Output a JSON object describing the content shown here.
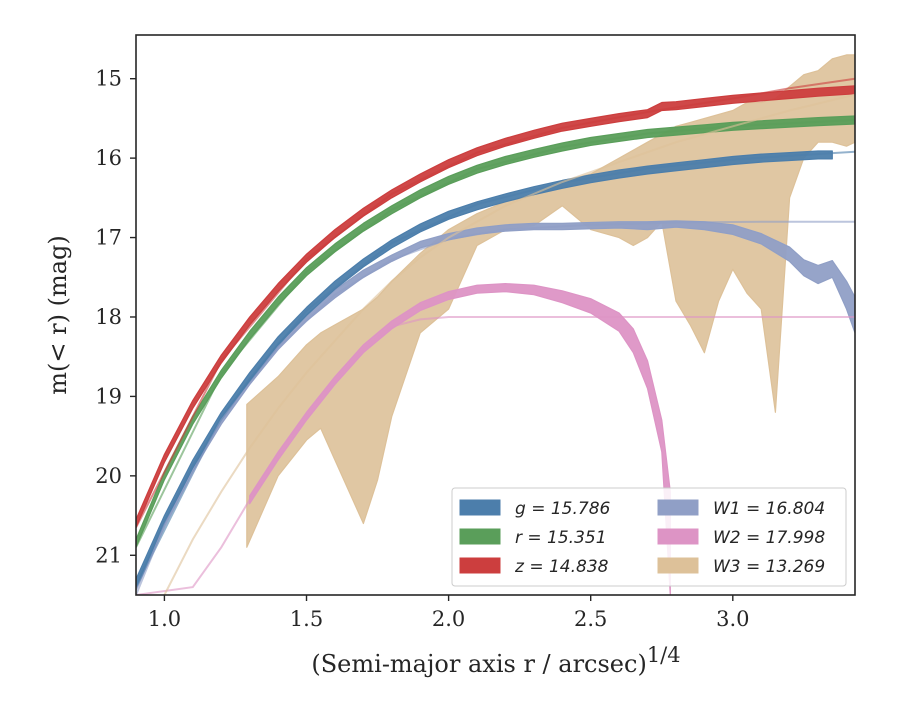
{
  "chart_data": {
    "type": "area",
    "xlabel": "(Semi-major axis r / arcsec)",
    "xlabel_power": "1/4",
    "ylabel": "m(< r) (mag)",
    "xlim": [
      0.9,
      3.43
    ],
    "ylim": [
      21.5,
      14.45
    ],
    "y_inverted": true,
    "grid": false,
    "legend_position": "lower-right",
    "legend_columns": 2,
    "x_ticks": [
      "1.0",
      "1.5",
      "2.0",
      "2.5",
      "3.0"
    ],
    "y_ticks": [
      "15",
      "16",
      "17",
      "18",
      "19",
      "20",
      "21"
    ],
    "series": [
      {
        "name": "g = 15.786",
        "color": "#4c7eab",
        "band_width": 0.05,
        "x": [
          0.9,
          1.0,
          1.1,
          1.2,
          1.3,
          1.4,
          1.5,
          1.6,
          1.7,
          1.8,
          1.9,
          2.0,
          2.1,
          2.2,
          2.3,
          2.4,
          2.5,
          2.6,
          2.7,
          2.8,
          2.9,
          3.0,
          3.1,
          3.2,
          3.3,
          3.35
        ],
        "y": [
          21.35,
          20.55,
          19.85,
          19.25,
          18.75,
          18.3,
          17.93,
          17.6,
          17.32,
          17.08,
          16.88,
          16.72,
          16.6,
          16.5,
          16.41,
          16.33,
          16.26,
          16.2,
          16.15,
          16.11,
          16.07,
          16.03,
          16.0,
          15.98,
          15.96,
          15.96
        ],
        "model_x": [
          0.9,
          1.2,
          1.5,
          1.8,
          2.1,
          2.4,
          2.7,
          3.0,
          3.2,
          3.43
        ],
        "model_y": [
          21.4,
          19.25,
          17.92,
          17.07,
          16.58,
          16.31,
          16.13,
          16.02,
          15.97,
          15.92
        ]
      },
      {
        "name": "r = 15.351",
        "color": "#5a9e5a",
        "band_width": 0.05,
        "x": [
          0.9,
          1.0,
          1.1,
          1.2,
          1.3,
          1.4,
          1.5,
          1.6,
          1.7,
          1.8,
          1.9,
          2.0,
          2.1,
          2.2,
          2.3,
          2.4,
          2.5,
          2.6,
          2.7,
          2.8,
          2.9,
          3.0,
          3.1,
          3.2,
          3.3,
          3.43
        ],
        "y": [
          20.85,
          20.0,
          19.3,
          18.72,
          18.23,
          17.8,
          17.43,
          17.13,
          16.87,
          16.65,
          16.45,
          16.28,
          16.14,
          16.03,
          15.94,
          15.86,
          15.79,
          15.74,
          15.69,
          15.66,
          15.63,
          15.6,
          15.58,
          15.56,
          15.54,
          15.52
        ],
        "model_x": [
          0.9,
          1.2,
          1.5,
          1.8,
          2.1,
          2.4,
          2.7,
          3.0,
          3.2,
          3.43
        ],
        "model_y": [
          20.9,
          18.72,
          17.43,
          16.65,
          16.14,
          15.86,
          15.69,
          15.6,
          15.56,
          15.52
        ]
      },
      {
        "name": "z = 14.838",
        "color": "#cc3e3e",
        "band_width": 0.05,
        "x": [
          0.9,
          1.0,
          1.1,
          1.2,
          1.3,
          1.4,
          1.5,
          1.6,
          1.7,
          1.8,
          1.9,
          2.0,
          2.1,
          2.2,
          2.3,
          2.4,
          2.5,
          2.6,
          2.7,
          2.75,
          2.8,
          2.9,
          3.0,
          3.1,
          3.2,
          3.3,
          3.43
        ],
        "y": [
          20.6,
          19.78,
          19.1,
          18.53,
          18.05,
          17.63,
          17.26,
          16.95,
          16.68,
          16.45,
          16.25,
          16.07,
          15.92,
          15.8,
          15.7,
          15.61,
          15.55,
          15.49,
          15.44,
          15.35,
          15.34,
          15.3,
          15.26,
          15.23,
          15.2,
          15.17,
          15.14
        ],
        "model_x": [
          0.9,
          1.2,
          1.5,
          1.8,
          2.1,
          2.4,
          2.7,
          3.0,
          3.2,
          3.43
        ],
        "model_y": [
          20.65,
          18.55,
          17.27,
          16.45,
          15.93,
          15.62,
          15.42,
          15.25,
          15.12,
          15.0
        ]
      },
      {
        "name": "W1 = 16.804",
        "color": "#909fc6",
        "x": [
          0.9,
          1.0,
          1.1,
          1.2,
          1.3,
          1.4,
          1.5,
          1.6,
          1.7,
          1.8,
          1.9,
          2.0,
          2.1,
          2.2,
          2.3,
          2.4,
          2.5,
          2.6,
          2.7,
          2.8,
          2.9,
          3.0,
          3.1,
          3.2,
          3.25,
          3.3,
          3.35,
          3.4,
          3.43
        ],
        "y_low": [
          21.36,
          20.56,
          19.86,
          19.27,
          18.77,
          18.33,
          17.97,
          17.66,
          17.41,
          17.22,
          17.05,
          16.95,
          16.88,
          16.84,
          16.82,
          16.82,
          16.81,
          16.8,
          16.8,
          16.79,
          16.8,
          16.84,
          16.95,
          17.12,
          17.28,
          17.35,
          17.29,
          17.55,
          17.75
        ],
        "y_high": [
          21.44,
          20.64,
          19.94,
          19.35,
          18.85,
          18.41,
          18.05,
          17.76,
          17.5,
          17.3,
          17.13,
          17.03,
          16.96,
          16.92,
          16.9,
          16.9,
          16.89,
          16.88,
          16.9,
          16.87,
          16.9,
          16.96,
          17.08,
          17.3,
          17.48,
          17.58,
          17.5,
          17.9,
          18.2
        ],
        "model_x": [
          0.9,
          1.0,
          1.2,
          1.4,
          1.6,
          1.8,
          2.0,
          2.2,
          2.5,
          2.8,
          3.1,
          3.43
        ],
        "model_y": [
          21.5,
          20.62,
          19.3,
          18.38,
          17.72,
          17.28,
          17.02,
          16.9,
          16.84,
          16.81,
          16.8,
          16.8
        ]
      },
      {
        "name": "W2 = 17.998",
        "color": "#dd94c5",
        "x": [
          1.3,
          1.4,
          1.5,
          1.6,
          1.7,
          1.8,
          1.9,
          2.0,
          2.1,
          2.2,
          2.3,
          2.4,
          2.5,
          2.6,
          2.65,
          2.7,
          2.75,
          2.78
        ],
        "y_low": [
          20.25,
          19.7,
          19.2,
          18.75,
          18.35,
          18.05,
          17.82,
          17.68,
          17.6,
          17.58,
          17.6,
          17.67,
          17.77,
          17.95,
          18.15,
          18.55,
          19.3,
          20.2
        ],
        "y_high": [
          20.35,
          19.8,
          19.3,
          18.85,
          18.45,
          18.15,
          17.92,
          17.78,
          17.7,
          17.68,
          17.72,
          17.82,
          17.95,
          18.18,
          18.45,
          18.9,
          19.7,
          21.5
        ],
        "model_x": [
          0.9,
          1.1,
          1.2,
          1.3,
          1.4,
          1.5,
          1.6,
          1.7,
          1.8,
          1.9,
          2.0,
          2.2,
          2.5,
          3.0,
          3.43
        ],
        "model_y": [
          21.5,
          21.4,
          20.9,
          20.3,
          19.75,
          19.25,
          18.8,
          18.4,
          18.12,
          18.03,
          18.0,
          18.0,
          18.0,
          18.0,
          18.0
        ]
      },
      {
        "name": "W3 = 13.269",
        "color": "#ddc199",
        "x": [
          1.29,
          1.4,
          1.5,
          1.55,
          1.6,
          1.7,
          1.75,
          1.8,
          1.9,
          2.0,
          2.1,
          2.2,
          2.3,
          2.4,
          2.5,
          2.6,
          2.65,
          2.7,
          2.75,
          2.8,
          2.85,
          2.9,
          2.95,
          3.0,
          3.05,
          3.1,
          3.15,
          3.2,
          3.25,
          3.3,
          3.35,
          3.4,
          3.43
        ],
        "y_low": [
          19.1,
          18.75,
          18.35,
          18.2,
          18.1,
          17.9,
          17.75,
          17.55,
          17.2,
          16.9,
          16.7,
          16.55,
          16.45,
          16.3,
          16.2,
          16.0,
          15.9,
          15.8,
          15.7,
          15.6,
          15.55,
          15.5,
          15.45,
          15.4,
          15.3,
          15.3,
          15.25,
          15.1,
          14.95,
          14.9,
          14.75,
          14.7,
          14.7
        ],
        "y_high": [
          20.9,
          20.0,
          19.55,
          19.4,
          19.8,
          20.6,
          20.05,
          19.25,
          18.2,
          17.9,
          17.1,
          16.9,
          16.85,
          16.6,
          16.9,
          17.0,
          17.1,
          17.0,
          16.8,
          17.8,
          18.1,
          18.45,
          17.8,
          17.4,
          17.7,
          17.9,
          19.2,
          16.5,
          16.0,
          15.8,
          15.8,
          15.85,
          15.8
        ],
        "model_x": [
          1.0,
          1.1,
          1.2,
          1.3,
          1.4,
          1.5,
          1.6,
          1.7,
          1.8,
          1.9,
          2.0,
          2.2,
          2.4,
          2.6,
          2.8,
          3.0,
          3.2,
          3.43
        ],
        "model_y": [
          21.5,
          20.8,
          20.2,
          19.65,
          19.15,
          18.7,
          18.3,
          17.9,
          17.55,
          17.25,
          17.0,
          16.6,
          16.3,
          16.05,
          15.8,
          15.6,
          15.4,
          15.2
        ]
      }
    ],
    "legend": [
      {
        "var": "g",
        "text": "g = 15.786",
        "color": "#4c7eab"
      },
      {
        "var": "r",
        "text": "r = 15.351",
        "color": "#5a9e5a"
      },
      {
        "var": "z",
        "text": "z = 14.838",
        "color": "#cc3e3e"
      },
      {
        "var": "W1",
        "text": "W1 = 16.804",
        "color": "#909fc6"
      },
      {
        "var": "W2",
        "text": "W2 = 17.998",
        "color": "#dd94c5"
      },
      {
        "var": "W3",
        "text": "W3 = 13.269",
        "color": "#ddc199"
      }
    ]
  }
}
